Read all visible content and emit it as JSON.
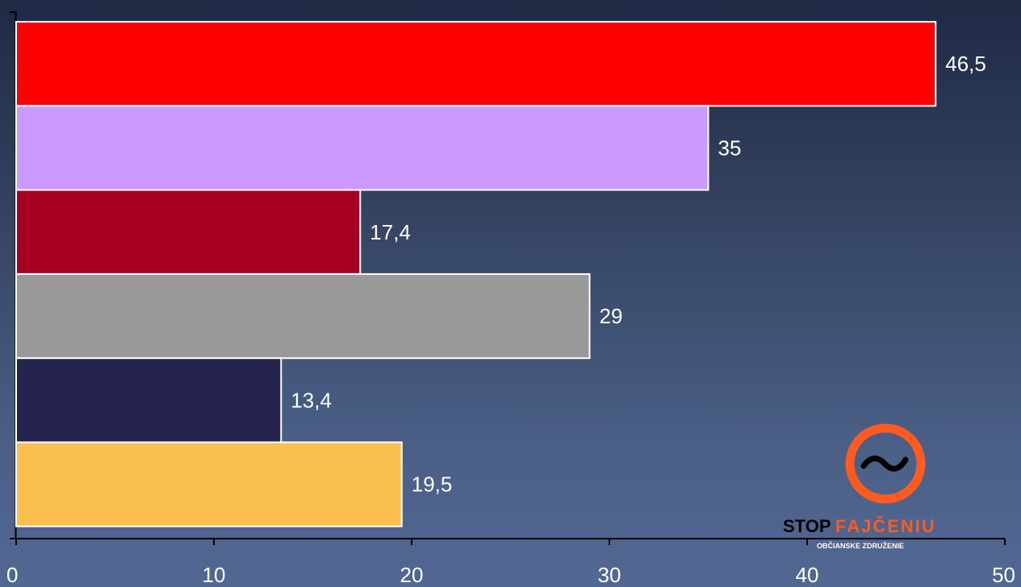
{
  "chart_data": {
    "type": "bar",
    "orientation": "horizontal",
    "values": [
      46.5,
      35,
      17.4,
      29,
      13.4,
      19.5
    ],
    "data_labels": [
      "46,5",
      "35",
      "17,4",
      "29",
      "13,4",
      "19,5"
    ],
    "colors": [
      "#ff0000",
      "#cc99ff",
      "#a50021",
      "#999999",
      "#24244f",
      "#fbbf4f"
    ],
    "xlim": [
      0,
      50
    ],
    "xticks": [
      0,
      10,
      20,
      30,
      40,
      50
    ],
    "xtick_labels": [
      "0",
      "10",
      "20",
      "30",
      "40",
      "50"
    ],
    "grid": false,
    "legend": "none"
  },
  "logo": {
    "text_stop": "STOP",
    "text_fajceniu": "FAJČENIU",
    "subtitle": "OBČIANSKE ZDRUŽENIE",
    "colors": {
      "orange": "#ff5a1f",
      "dark": "#000000"
    }
  }
}
